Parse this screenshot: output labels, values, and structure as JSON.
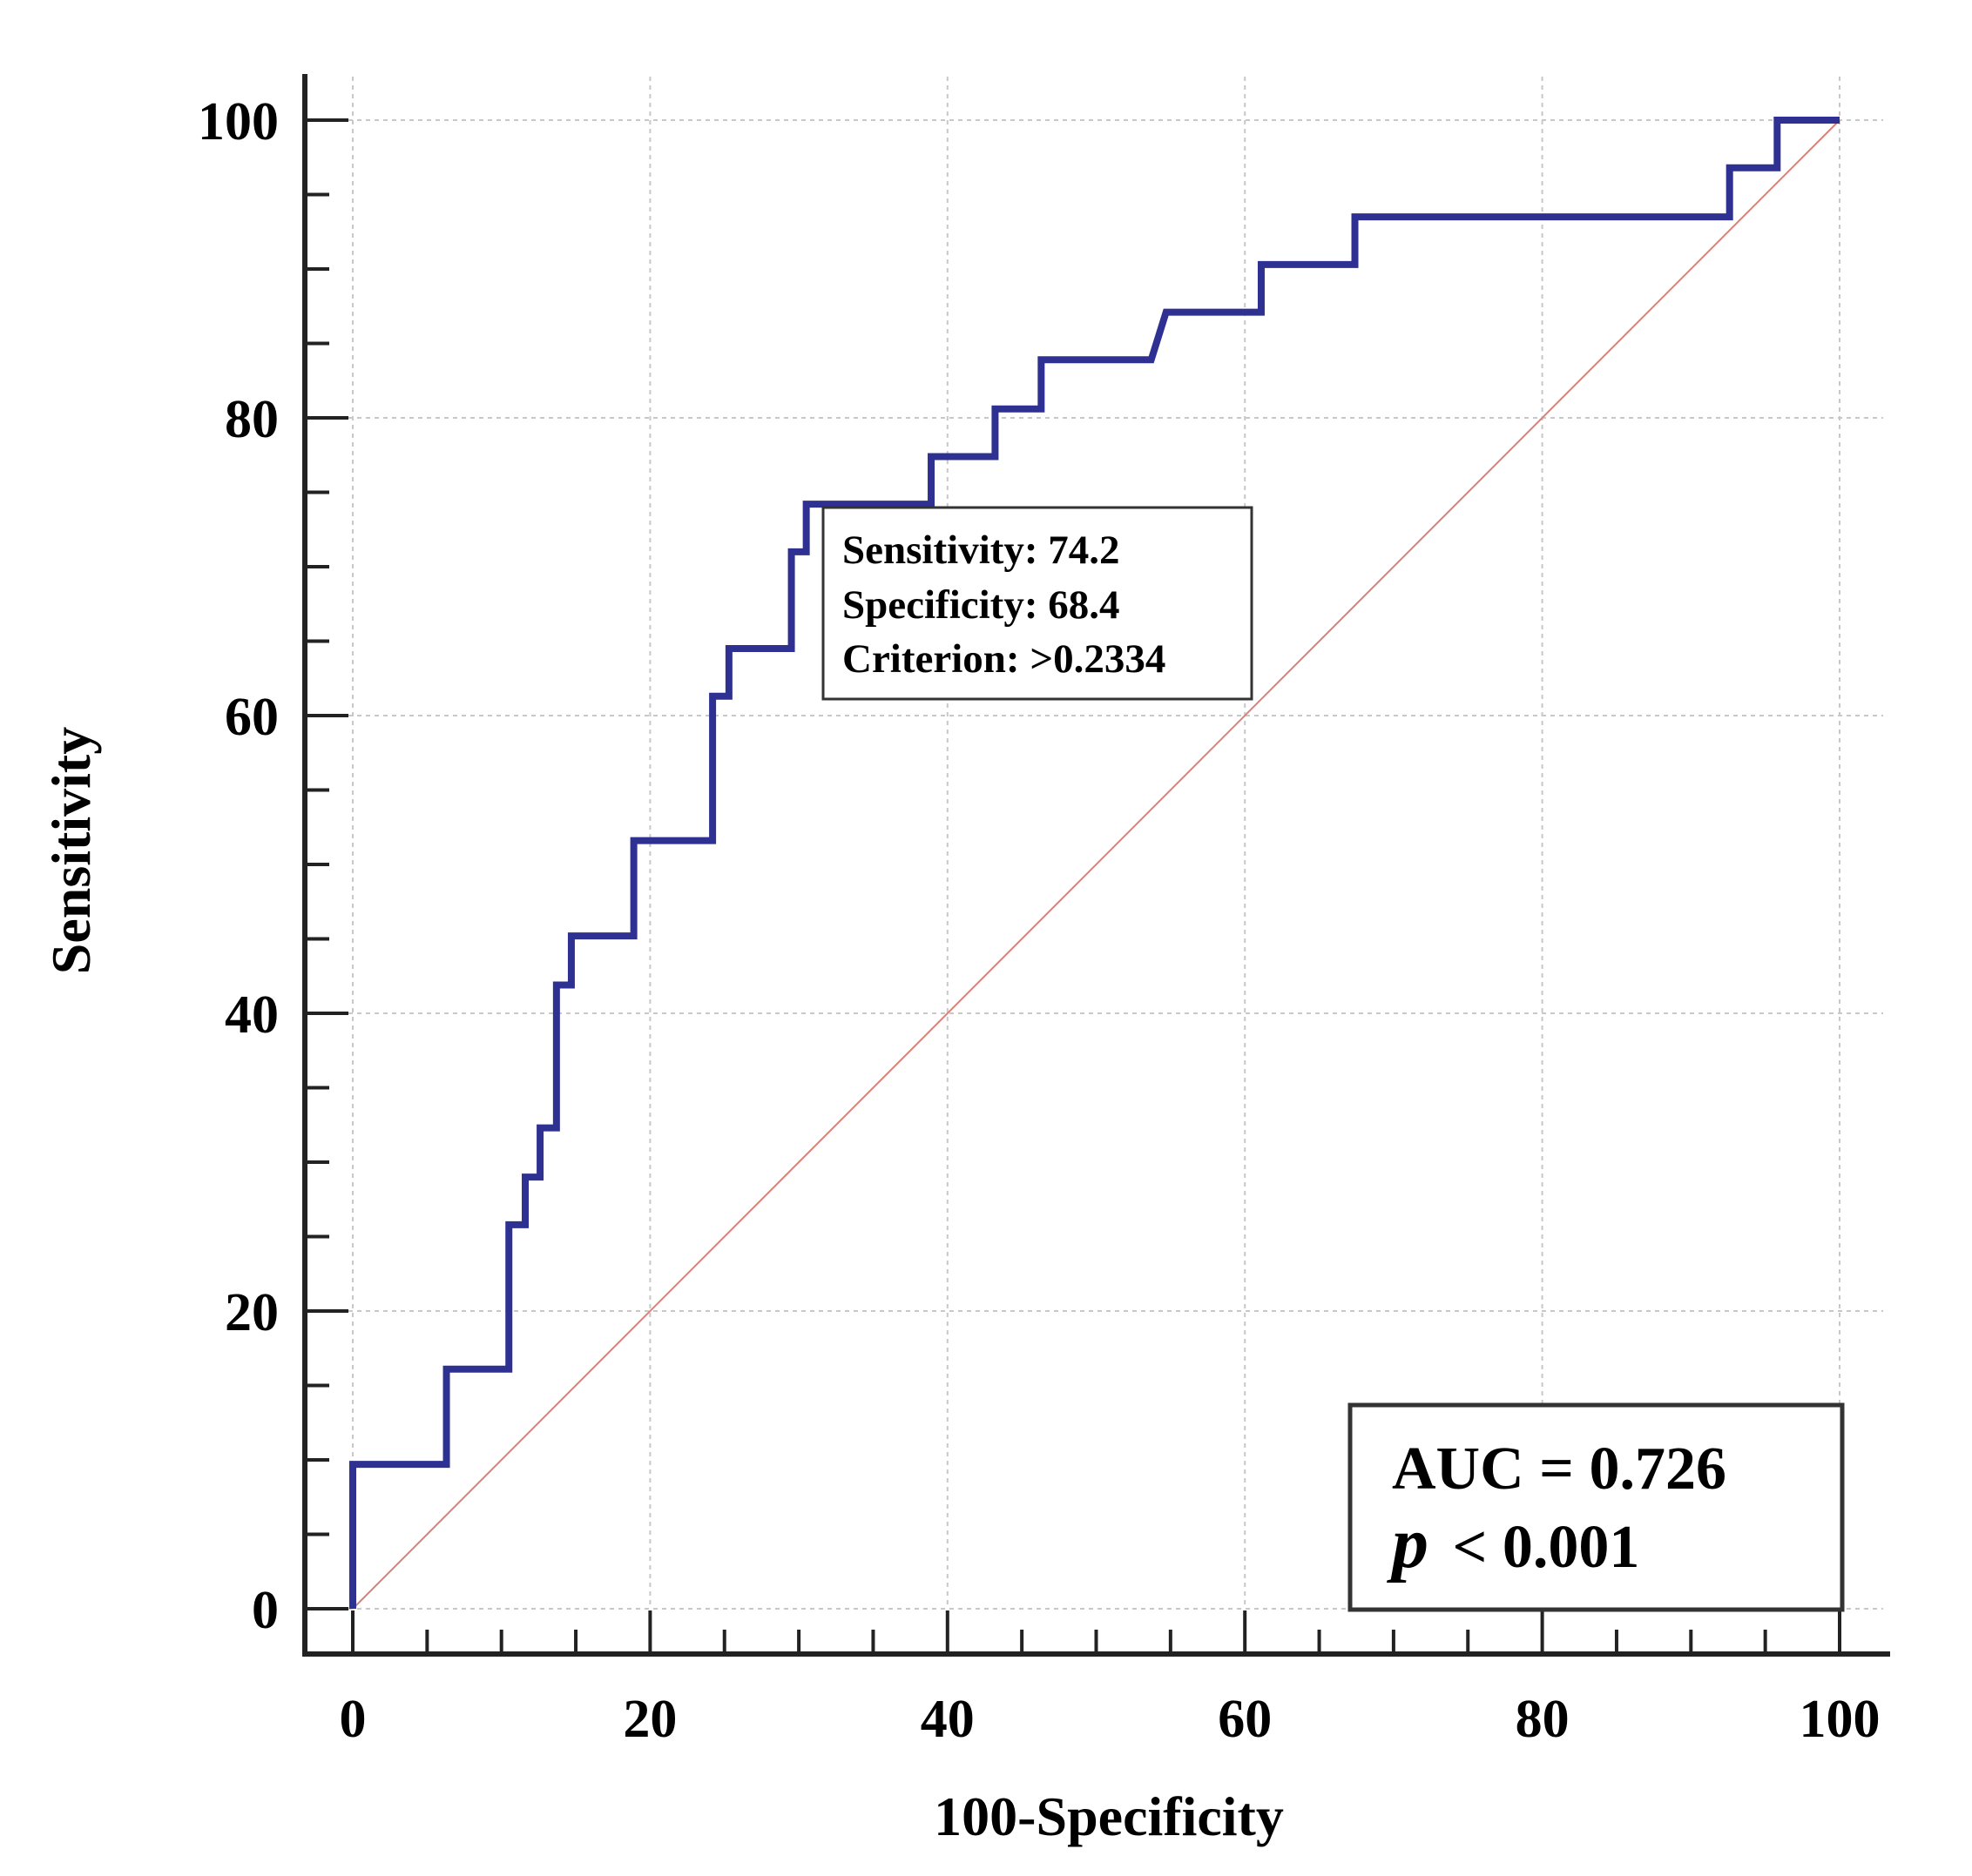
{
  "chart_data": {
    "type": "line",
    "title": "",
    "xlabel": "100-Specificity",
    "ylabel": "Sensitivity",
    "xlim": [
      0,
      100
    ],
    "ylim": [
      0,
      100
    ],
    "xticks": [
      0,
      20,
      40,
      60,
      80,
      100
    ],
    "yticks": [
      0,
      20,
      40,
      60,
      80,
      100
    ],
    "x_minor_step": 5,
    "y_minor_step": 5,
    "grid": true,
    "series": [
      {
        "name": "ROC curve",
        "color": "#2e3192",
        "points": [
          [
            0,
            0
          ],
          [
            0,
            9.7
          ],
          [
            6.3,
            9.7
          ],
          [
            6.3,
            16.1
          ],
          [
            10.5,
            16.1
          ],
          [
            10.5,
            25.8
          ],
          [
            11.6,
            25.8
          ],
          [
            11.6,
            29.0
          ],
          [
            12.6,
            29.0
          ],
          [
            12.6,
            32.3
          ],
          [
            13.7,
            32.3
          ],
          [
            13.7,
            41.9
          ],
          [
            14.7,
            41.9
          ],
          [
            14.7,
            45.2
          ],
          [
            18.9,
            45.2
          ],
          [
            18.9,
            51.6
          ],
          [
            24.2,
            51.6
          ],
          [
            24.2,
            61.3
          ],
          [
            25.3,
            61.3
          ],
          [
            25.3,
            64.5
          ],
          [
            29.5,
            64.5
          ],
          [
            29.5,
            71.0
          ],
          [
            30.5,
            71.0
          ],
          [
            30.5,
            74.2
          ],
          [
            38.9,
            74.2
          ],
          [
            38.9,
            77.4
          ],
          [
            43.2,
            77.4
          ],
          [
            43.2,
            80.6
          ],
          [
            46.3,
            80.6
          ],
          [
            46.3,
            83.9
          ],
          [
            53.7,
            83.9
          ],
          [
            54.7,
            87.1
          ],
          [
            61.1,
            87.1
          ],
          [
            61.1,
            90.3
          ],
          [
            67.4,
            90.3
          ],
          [
            67.4,
            93.5
          ],
          [
            92.6,
            93.5
          ],
          [
            92.6,
            96.8
          ],
          [
            95.8,
            96.8
          ],
          [
            95.8,
            100
          ],
          [
            100,
            100
          ]
        ]
      },
      {
        "name": "Reference line",
        "color": "#d9827a",
        "points": [
          [
            0,
            0
          ],
          [
            100,
            100
          ]
        ]
      }
    ],
    "annotations": {
      "criterion_box": {
        "sensitivity": "Sensitivity: 74.2",
        "specificity": "Specificity: 68.4",
        "criterion": "Criterion: >0.2334"
      },
      "auc_box": {
        "auc": "AUC = 0.726",
        "p_symbol": "p",
        "p_value": "< 0.001",
        "placement": "bottom-right"
      }
    }
  }
}
